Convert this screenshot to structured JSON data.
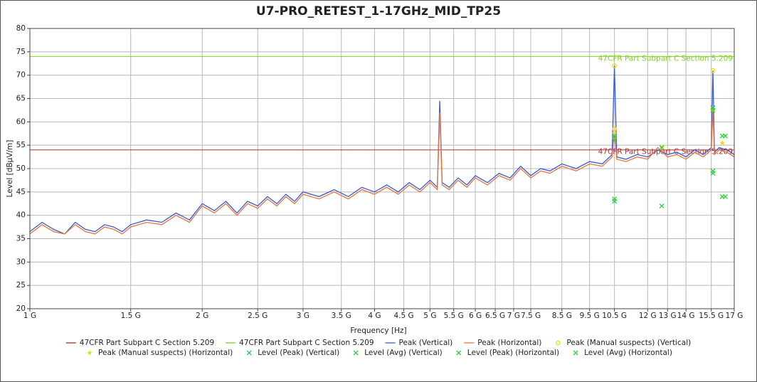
{
  "chart_data": {
    "type": "line",
    "title": "U7-PRO_RETEST_1-17GHz_MID_TP25",
    "xlabel": "Frequency [Hz]",
    "ylabel": "Level [dBµV/m]",
    "xscale": "log",
    "xlim": [
      1000000000.0,
      17000000000.0
    ],
    "xticks": [
      {
        "value": 1000000000.0,
        "label": "1 G"
      },
      {
        "value": 1500000000.0,
        "label": "1.5 G"
      },
      {
        "value": 2000000000.0,
        "label": "2 G"
      },
      {
        "value": 2500000000.0,
        "label": "2.5 G"
      },
      {
        "value": 3000000000.0,
        "label": "3 G"
      },
      {
        "value": 3500000000.0,
        "label": "3.5 G"
      },
      {
        "value": 4000000000.0,
        "label": "4 G"
      },
      {
        "value": 4500000000.0,
        "label": "4.5 G"
      },
      {
        "value": 5000000000.0,
        "label": "5 G"
      },
      {
        "value": 5500000000.0,
        "label": "5.5 G"
      },
      {
        "value": 6000000000.0,
        "label": "6 G"
      },
      {
        "value": 6500000000.0,
        "label": "6.5 G"
      },
      {
        "value": 7000000000.0,
        "label": "7 G"
      },
      {
        "value": 7500000000.0,
        "label": "7.5 G"
      },
      {
        "value": 8500000000.0,
        "label": "8.5 G"
      },
      {
        "value": 9500000000.0,
        "label": "9.5 G"
      },
      {
        "value": 10500000000.0,
        "label": "10.5 G"
      },
      {
        "value": 12000000000.0,
        "label": "12 G"
      },
      {
        "value": 13000000000.0,
        "label": "13 G"
      },
      {
        "value": 14000000000.0,
        "label": "14 G"
      },
      {
        "value": 15500000000.0,
        "label": "15.5 G"
      },
      {
        "value": 17000000000.0,
        "label": "17 G"
      }
    ],
    "ylim": [
      20,
      80
    ],
    "yticks": [
      20,
      25,
      30,
      35,
      40,
      45,
      50,
      55,
      60,
      65,
      70,
      75,
      80
    ],
    "grid": true,
    "limits": [
      {
        "name": "47CFR Part Subpart C Section 5.209",
        "color": "#b03030",
        "value": 54
      },
      {
        "name": "47CFR Part Subpart C Section 5.209",
        "color": "#7ed321",
        "value": 74
      }
    ],
    "x": [
      1000000000.0,
      1050000000.0,
      1100000000.0,
      1150000000.0,
      1200000000.0,
      1250000000.0,
      1300000000.0,
      1350000000.0,
      1400000000.0,
      1450000000.0,
      1500000000.0,
      1600000000.0,
      1700000000.0,
      1800000000.0,
      1900000000.0,
      2000000000.0,
      2100000000.0,
      2200000000.0,
      2300000000.0,
      2400000000.0,
      2500000000.0,
      2600000000.0,
      2700000000.0,
      2800000000.0,
      2900000000.0,
      3000000000.0,
      3200000000.0,
      3400000000.0,
      3600000000.0,
      3800000000.0,
      4000000000.0,
      4200000000.0,
      4400000000.0,
      4600000000.0,
      4800000000.0,
      5000000000.0,
      5150000000.0,
      5200000000.0,
      5250000000.0,
      5400000000.0,
      5600000000.0,
      5800000000.0,
      6000000000.0,
      6300000000.0,
      6600000000.0,
      6900000000.0,
      7200000000.0,
      7500000000.0,
      7800000000.0,
      8100000000.0,
      8500000000.0,
      9000000000.0,
      9500000000.0,
      10000000000.0,
      10400000000.0,
      10500000000.0,
      10600000000.0,
      11000000000.0,
      11500000000.0,
      12000000000.0,
      12500000000.0,
      13000000000.0,
      13500000000.0,
      14000000000.0,
      14500000000.0,
      15000000000.0,
      15500000000.0,
      15600000000.0,
      15700000000.0,
      16000000000.0,
      16500000000.0,
      17000000000.0
    ],
    "series": [
      {
        "name": "Peak (Vertical)",
        "color": "#3a5ad8",
        "values": [
          36.5,
          38.5,
          37,
          36,
          38.5,
          37,
          36.5,
          38,
          37.5,
          36.5,
          38,
          39,
          38.5,
          40.5,
          39,
          42.5,
          41,
          43,
          40.5,
          43,
          42,
          44,
          42.5,
          44.5,
          43,
          45,
          44,
          45.5,
          44,
          46,
          45,
          46.5,
          45,
          47,
          45.5,
          47.5,
          46,
          64.5,
          47,
          46,
          48,
          46.5,
          48.5,
          47,
          49,
          48,
          50.5,
          48.5,
          50,
          49.5,
          51,
          50,
          51.5,
          51,
          53,
          72,
          52.5,
          52,
          53,
          52.5,
          54,
          53,
          53.5,
          52.5,
          54,
          53,
          54.5,
          71,
          53.5,
          54.5,
          54,
          53
        ]
      },
      {
        "name": "Peak (Horizontal)",
        "color": "#e8753a",
        "values": [
          36,
          38,
          36.5,
          36,
          38,
          36.5,
          36,
          37.5,
          37,
          36,
          37.5,
          38.5,
          38,
          40,
          38.5,
          42,
          40.5,
          42.5,
          40,
          42.5,
          41.5,
          43.5,
          42,
          44,
          42.5,
          44.5,
          43.5,
          45,
          43.5,
          45.5,
          44.5,
          46,
          44.5,
          46.5,
          45,
          47,
          45.5,
          62,
          46.5,
          45.5,
          47.5,
          46,
          48,
          46.5,
          48.5,
          47.5,
          50,
          48,
          49.5,
          49,
          50.5,
          49.5,
          51,
          50.5,
          52.5,
          58,
          52,
          51.5,
          52.5,
          52,
          54.5,
          52.5,
          53,
          52,
          53.5,
          52.5,
          54,
          62.5,
          53,
          54,
          53.5,
          52.5
        ]
      }
    ],
    "markers": [
      {
        "name": "Peak (Manual suspects) (Vertical)",
        "color": "#f2d600",
        "marker": "circle",
        "x": [
          10500000000.0,
          10500000000.0,
          15600000000.0
        ],
        "values": [
          72,
          58.5,
          71
        ]
      },
      {
        "name": "Peak (Manual suspects) (Horizontal)",
        "color": "#f2d600",
        "marker": "star",
        "x": [
          10500000000.0,
          12700000000.0,
          15600000000.0,
          16200000000.0
        ],
        "values": [
          57.5,
          54.5,
          62.5,
          55.5
        ]
      },
      {
        "name": "Level (Peak) (Vertical)",
        "color": "#2ecc40",
        "marker": "x",
        "x": [
          10500000000.0,
          15600000000.0,
          16200000000.0
        ],
        "values": [
          57,
          63,
          57
        ]
      },
      {
        "name": "Level (Avg) (Vertical)",
        "color": "#2ecc40",
        "marker": "x",
        "x": [
          10500000000.0,
          15600000000.0,
          16200000000.0
        ],
        "values": [
          43.5,
          49.5,
          44
        ]
      },
      {
        "name": "Level (Peak) (Horizontal)",
        "color": "#2ecc40",
        "marker": "x",
        "x": [
          10500000000.0,
          12700000000.0,
          15600000000.0,
          16400000000.0
        ],
        "values": [
          56,
          54.5,
          62.5,
          57
        ]
      },
      {
        "name": "Level (Avg) (Horizontal)",
        "color": "#2ecc40",
        "marker": "x",
        "x": [
          10500000000.0,
          12700000000.0,
          15600000000.0,
          16400000000.0
        ],
        "values": [
          43,
          42,
          49,
          44
        ]
      }
    ]
  }
}
